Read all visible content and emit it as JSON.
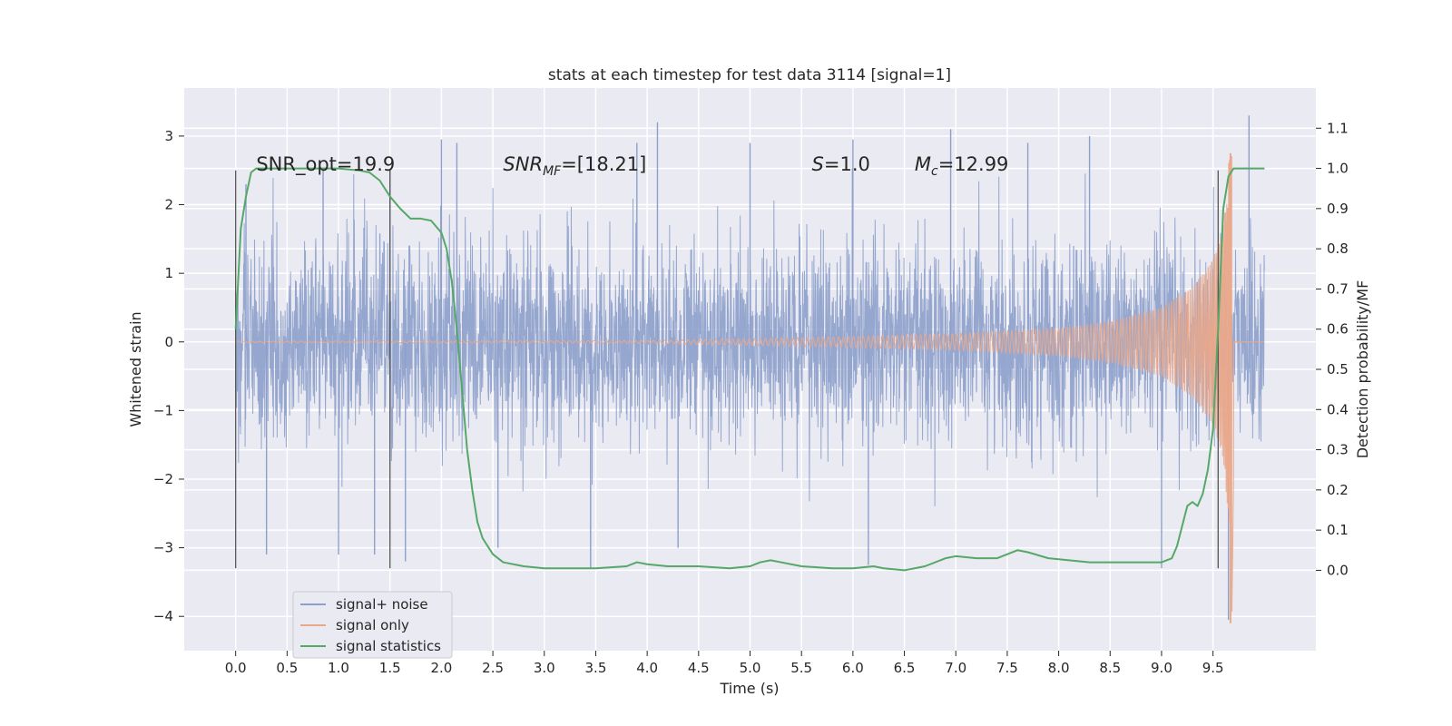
{
  "chart_data": {
    "type": "line",
    "title": "stats at each timestep for test data 3114 [signal=1]",
    "xlabel": "Time (s)",
    "ylabel": "Whitened strain",
    "ylabel_right": "Detection probability/MF",
    "xlim": [
      -0.5,
      10.5
    ],
    "ylim": [
      -4.5,
      3.7
    ],
    "ylim_right": [
      -0.2,
      1.2
    ],
    "xticks": [
      0.0,
      0.5,
      1.0,
      1.5,
      2.0,
      2.5,
      3.0,
      3.5,
      4.0,
      4.5,
      5.0,
      5.5,
      6.0,
      6.5,
      7.0,
      7.5,
      8.0,
      8.5,
      9.0,
      9.5
    ],
    "xtick_labels": [
      "0.0",
      "0.5",
      "1.0",
      "1.5",
      "2.0",
      "2.5",
      "3.0",
      "3.5",
      "4.0",
      "4.5",
      "5.0",
      "5.5",
      "6.0",
      "6.5",
      "7.0",
      "7.5",
      "8.0",
      "8.5",
      "9.0",
      "9.5"
    ],
    "yticks": [
      3,
      2,
      1,
      0,
      -1,
      -2,
      -3,
      -4
    ],
    "ytick_labels": [
      "3",
      "2",
      "1",
      "0",
      "−1",
      "−2",
      "−3",
      "−4"
    ],
    "yticks_right": [
      1.1,
      1.0,
      0.9,
      0.8,
      0.7,
      0.6,
      0.5,
      0.4,
      0.3,
      0.2,
      0.1,
      0.0
    ],
    "ytick_labels_right": [
      "1.1",
      "1.0",
      "0.9",
      "0.8",
      "0.7",
      "0.6",
      "0.5",
      "0.4",
      "0.3",
      "0.2",
      "0.1",
      "0.0"
    ],
    "grid": true,
    "legend_position": "lower-left",
    "annotations": [
      {
        "text": "SNR_opt=19.9",
        "x": 0.2,
        "y": 2.6
      },
      {
        "text": "SNR_MF=[18.21]",
        "x": 2.6,
        "y": 2.6
      },
      {
        "text": "S=1.0",
        "x": 5.6,
        "y": 2.6
      },
      {
        "text": "M_c=12.99",
        "x": 6.6,
        "y": 2.6
      }
    ],
    "vertical_markers": [
      {
        "x": 0.0,
        "y0": -3.3,
        "y1": 2.5
      },
      {
        "x": 1.5,
        "y0": -3.3,
        "y1": 2.5
      },
      {
        "x": 9.55,
        "y0": -3.3,
        "y1": 2.5
      }
    ],
    "series": [
      {
        "name": "signal+ noise",
        "color": "#8da0cb",
        "axis": "left",
        "kind": "noisy-strain",
        "x_range": [
          0.0,
          10.0
        ],
        "envelope": {
          "core": 1.35,
          "peak_max": 3.3,
          "peak_min": -4.1
        },
        "peaks": [
          [
            0.1,
            2.3
          ],
          [
            0.85,
            2.5
          ],
          [
            1.5,
            2.5
          ],
          [
            2.0,
            2.95
          ],
          [
            2.15,
            2.9
          ],
          [
            3.9,
            2.9
          ],
          [
            4.1,
            3.2
          ],
          [
            5.0,
            2.9
          ],
          [
            6.0,
            2.95
          ],
          [
            6.95,
            3.1
          ],
          [
            7.7,
            2.9
          ],
          [
            8.3,
            3.0
          ],
          [
            9.85,
            3.3
          ]
        ],
        "troughs": [
          [
            0.3,
            -3.1
          ],
          [
            1.0,
            -3.1
          ],
          [
            1.35,
            -3.1
          ],
          [
            1.65,
            -3.2
          ],
          [
            2.55,
            -3.0
          ],
          [
            3.45,
            -3.3
          ],
          [
            4.3,
            -3.0
          ],
          [
            6.15,
            -3.25
          ],
          [
            9.0,
            -3.3
          ],
          [
            9.65,
            -4.05
          ]
        ]
      },
      {
        "name": "signal only",
        "color": "#e9a88a",
        "axis": "left",
        "kind": "chirp",
        "x_range": [
          0.0,
          10.0
        ],
        "amplitude_points": [
          [
            0.0,
            0.01
          ],
          [
            4.0,
            0.02
          ],
          [
            5.0,
            0.05
          ],
          [
            6.0,
            0.08
          ],
          [
            7.0,
            0.12
          ],
          [
            8.0,
            0.2
          ],
          [
            8.5,
            0.3
          ],
          [
            9.0,
            0.5
          ],
          [
            9.3,
            0.8
          ],
          [
            9.5,
            1.2
          ],
          [
            9.6,
            1.7
          ],
          [
            9.66,
            2.75
          ]
        ],
        "merger": {
          "x": 9.67,
          "max": 2.75,
          "min": -4.1
        }
      },
      {
        "name": "signal statistics",
        "color": "#55a868",
        "axis": "right",
        "x": [
          0.0,
          0.05,
          0.1,
          0.15,
          0.2,
          0.3,
          0.5,
          0.8,
          1.0,
          1.2,
          1.3,
          1.4,
          1.5,
          1.6,
          1.7,
          1.8,
          1.9,
          2.0,
          2.05,
          2.1,
          2.15,
          2.2,
          2.25,
          2.3,
          2.35,
          2.4,
          2.5,
          2.6,
          2.8,
          3.0,
          3.5,
          3.8,
          3.9,
          4.0,
          4.2,
          4.5,
          4.8,
          5.0,
          5.1,
          5.2,
          5.3,
          5.5,
          5.8,
          6.0,
          6.2,
          6.3,
          6.5,
          6.7,
          6.9,
          7.0,
          7.2,
          7.4,
          7.6,
          7.7,
          7.9,
          8.1,
          8.3,
          8.5,
          8.7,
          8.9,
          9.0,
          9.1,
          9.15,
          9.2,
          9.25,
          9.3,
          9.35,
          9.4,
          9.45,
          9.5,
          9.55,
          9.6,
          9.65,
          9.7,
          9.8,
          9.9,
          10.0
        ],
        "values": [
          0.6,
          0.85,
          0.93,
          0.99,
          1.0,
          1.0,
          1.0,
          1.0,
          1.0,
          0.995,
          0.99,
          0.97,
          0.93,
          0.9,
          0.875,
          0.875,
          0.87,
          0.84,
          0.8,
          0.72,
          0.6,
          0.45,
          0.3,
          0.2,
          0.12,
          0.08,
          0.04,
          0.02,
          0.01,
          0.005,
          0.005,
          0.01,
          0.02,
          0.015,
          0.01,
          0.01,
          0.005,
          0.01,
          0.02,
          0.025,
          0.02,
          0.01,
          0.005,
          0.005,
          0.01,
          0.005,
          0.0,
          0.01,
          0.03,
          0.035,
          0.03,
          0.03,
          0.05,
          0.045,
          0.03,
          0.025,
          0.02,
          0.02,
          0.02,
          0.02,
          0.02,
          0.03,
          0.06,
          0.11,
          0.16,
          0.17,
          0.16,
          0.19,
          0.25,
          0.35,
          0.6,
          0.9,
          0.98,
          1.0,
          1.0,
          1.0,
          1.0
        ]
      }
    ],
    "legend": [
      {
        "label": "signal+ noise",
        "color": "#8da0cb"
      },
      {
        "label": "signal only",
        "color": "#e9a88a"
      },
      {
        "label": "signal statistics",
        "color": "#55a868"
      }
    ]
  }
}
